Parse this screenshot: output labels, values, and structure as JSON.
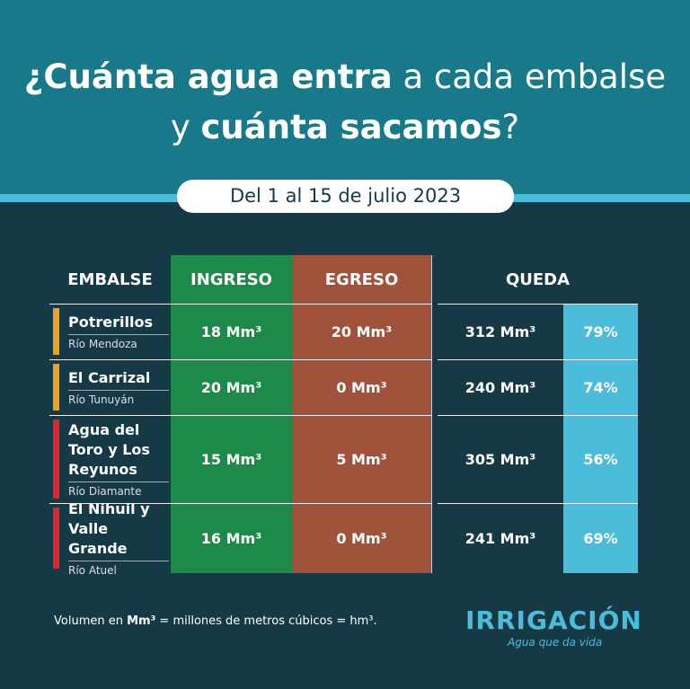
{
  "header": {
    "title_lines": [
      [
        {
          "text": "¿Cuánta agua entra",
          "bold": true
        },
        {
          "text": " a cada embalse",
          "bold": false
        }
      ],
      [
        {
          "text": "y ",
          "bold": false
        },
        {
          "text": "cuánta sacamos",
          "bold": true
        },
        {
          "text": "?",
          "bold": false
        }
      ]
    ],
    "period": "Del 1 al 15 de julio 2023"
  },
  "table": {
    "columns": [
      "EMBALSE",
      "INGRESO",
      "EGRESO",
      "QUEDA"
    ],
    "rows": [
      {
        "name": "Potrerillos",
        "river": "Río Mendoza",
        "color": "#f0a020",
        "ingreso": "18 Mm³",
        "egreso": "20 Mm³",
        "queda": "312 Mm³",
        "percent": "79%"
      },
      {
        "name": "El Carrizal",
        "river": "Río Tunuyán",
        "color": "#f0a020",
        "ingreso": "20 Mm³",
        "egreso": "0 Mm³",
        "queda": "240 Mm³",
        "percent": "74%"
      },
      {
        "name": "Agua del Toro y Los Reyunos",
        "river": "Río Diamante",
        "color": "#e0262b",
        "ingreso": "15 Mm³",
        "egreso": "5 Mm³",
        "queda": "305 Mm³",
        "percent": "56%"
      },
      {
        "name": "El Nihuil y Valle Grande",
        "river": "Río Atuel",
        "color": "#e0262b",
        "ingreso": "16 Mm³",
        "egreso": "0 Mm³",
        "queda": "241 Mm³",
        "percent": "69%"
      }
    ]
  },
  "footer": {
    "note": [
      {
        "text": "Volumen en ",
        "bold": false
      },
      {
        "text": "Mm³",
        "bold": true
      },
      {
        "text": " = millones de metros cúbicos = hm³.",
        "bold": false
      }
    ],
    "logo": "IRRIGACIÓN",
    "tagline": "Agua que da vida"
  }
}
